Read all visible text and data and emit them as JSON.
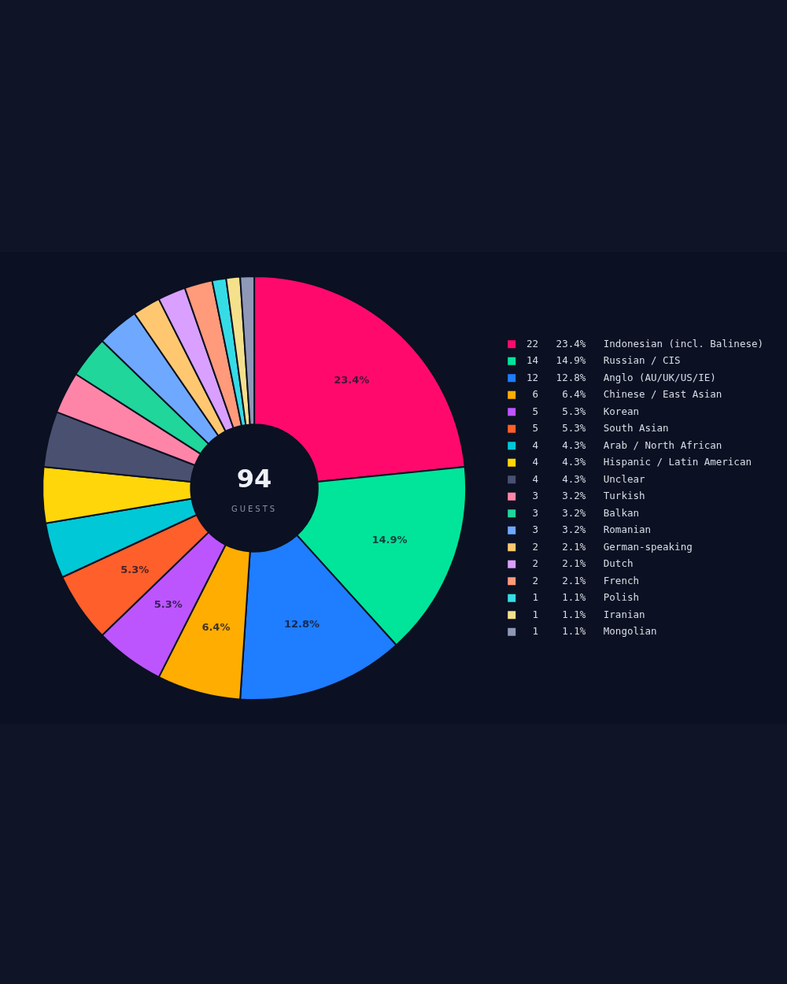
{
  "chart_data": {
    "type": "donut",
    "categories": [
      "Indonesian (incl. Balinese)",
      "Russian / CIS",
      "Anglo (AU/UK/US/IE)",
      "Chinese / East Asian",
      "Korean",
      "South Asian",
      "Arab / North African",
      "Hispanic / Latin American",
      "Unclear",
      "Turkish",
      "Balkan",
      "Romanian",
      "German-speaking",
      "Dutch",
      "French",
      "Polish",
      "Iranian",
      "Mongolian"
    ],
    "values": [
      22,
      14,
      12,
      6,
      5,
      5,
      4,
      4,
      4,
      3,
      3,
      3,
      2,
      2,
      2,
      1,
      1,
      1
    ],
    "value_labels": [
      "22   23.4%",
      "14   14.9%",
      "12   12.8%",
      "6    6.4%",
      "5    5.3%",
      "5    5.3%",
      "4    4.3%",
      "4    4.3%",
      "4    4.3%",
      "3    3.2%",
      "3    3.2%",
      "3    3.2%",
      "2    2.1%",
      "2    2.1%",
      "2    2.1%",
      "1    1.1%",
      "1    1.1%",
      "1    1.1%"
    ],
    "colors": [
      "#ff0a6c",
      "#00e59a",
      "#1f7dff",
      "#ffad00",
      "#bd55ff",
      "#ff5f2a",
      "#00c8d6",
      "#ffd60a",
      "#4a5070",
      "#ff85a8",
      "#20d69a",
      "#6fa8ff",
      "#ffc870",
      "#d9a0ff",
      "#ff9a7a",
      "#35dce6",
      "#f5e08c",
      "#9098b8"
    ],
    "annotations": [
      "94",
      "GUESTS",
      {
        "text": "23.4%",
        "x": "Indonesian (incl. Balinese)"
      },
      {
        "text": "14.9%",
        "x": "Russian / CIS"
      },
      {
        "text": "12.8%",
        "x": "Anglo (AU/UK/US/IE)"
      },
      {
        "text": "6.4%",
        "x": "Chinese / East Asian"
      },
      {
        "text": "5.3%",
        "x": "Korean"
      },
      {
        "text": "5.3%",
        "x": "South Asian"
      }
    ],
    "legend": "right"
  }
}
